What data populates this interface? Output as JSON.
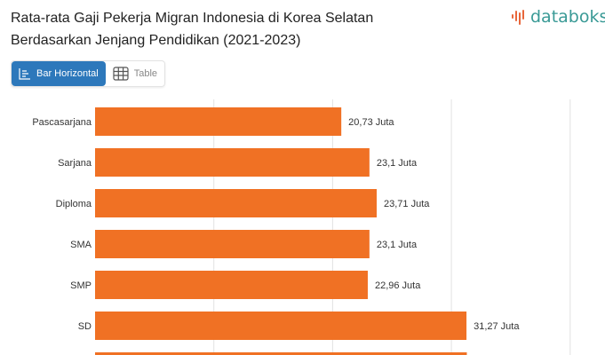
{
  "title": "Rata-rata Gaji Pekerja Migran Indonesia di Korea Selatan Berdasarkan Jenjang Pendidikan (2021-2023)",
  "logo": {
    "text": "databoks",
    "color": "#3a9a96",
    "mark_color": "#e8663a"
  },
  "tabs": [
    {
      "label": "Bar Horizontal",
      "icon": "bar-chart-icon",
      "active": true
    },
    {
      "label": "Table",
      "icon": "table-icon",
      "active": false
    }
  ],
  "chart_data": {
    "type": "bar",
    "orientation": "horizontal",
    "categories": [
      "Pascasarjana",
      "Sarjana",
      "Diploma",
      "SMA",
      "SMP",
      "SD",
      ""
    ],
    "values": [
      20.73,
      23.1,
      23.71,
      23.1,
      22.96,
      31.27,
      31.3
    ],
    "data_labels": [
      "20,73 Juta",
      "23,1 Juta",
      "23,71 Juta",
      "23,1 Juta",
      "22,96 Juta",
      "31,27 Juta",
      ""
    ],
    "unit": "Juta",
    "xlim": [
      0,
      40
    ],
    "grid": true,
    "bar_color": "#f07124"
  }
}
